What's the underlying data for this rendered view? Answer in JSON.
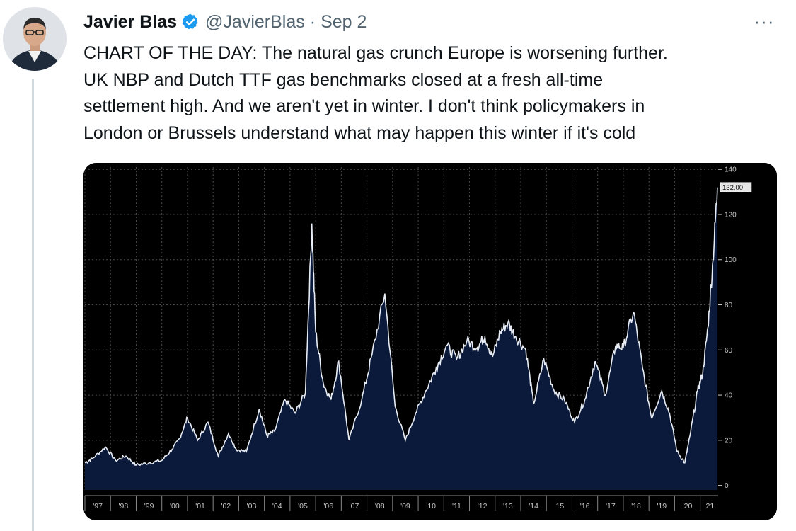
{
  "author": {
    "name": "Javier Blas",
    "handle": "@JavierBlas",
    "date": "Sep 2",
    "separator": "·"
  },
  "more_label": "···",
  "tweet_lines": [
    "CHART OF THE DAY: The natural gas crunch Europe is worsening further.",
    "UK NBP and Dutch TTF gas benchmarks closed at a fresh all-time",
    "settlement high. And we aren't yet in winter. I don't think policymakers in",
    "London or Brussels understand what may happen this winter if it's cold"
  ],
  "colors": {
    "verified_badge": "#1d9bf0",
    "chart_background": "#000000",
    "chart_fill": "#0b1a3a",
    "chart_line": "#e8edf5",
    "grid": "#4a4a4a",
    "axis_text": "#c8c8c8"
  },
  "chart_data": {
    "type": "area",
    "last_value_label": "132.00",
    "y_ticks": [
      0,
      20,
      40,
      60,
      80,
      100,
      120,
      140
    ],
    "ylim": [
      -2,
      141
    ],
    "xlim": [
      1997,
      2021.7
    ],
    "x_tick_labels": [
      "'97",
      "'98",
      "'99",
      "'00",
      "'01",
      "'02",
      "'03",
      "'04",
      "'05",
      "'06",
      "'07",
      "'08",
      "'09",
      "'10",
      "'11",
      "'12",
      "'13",
      "'14",
      "'15",
      "'16",
      "'17",
      "'18",
      "'19",
      "'20",
      "'21"
    ],
    "x_tick_years": [
      1997,
      1998,
      1999,
      2000,
      2001,
      2002,
      2003,
      2004,
      2005,
      2006,
      2007,
      2008,
      2009,
      2010,
      2011,
      2012,
      2013,
      2014,
      2015,
      2016,
      2017,
      2018,
      2019,
      2020,
      2021
    ],
    "series": [
      {
        "x": [
          1997.0,
          1997.3,
          1997.8,
          1998.2,
          1998.6,
          1999.0,
          1999.5,
          2000.0,
          2000.4,
          2000.7,
          2001.0,
          2001.4,
          2001.8,
          2002.2,
          2002.6,
          2002.9,
          2003.3,
          2003.8,
          2004.1,
          2004.4,
          2004.8,
          2005.2,
          2005.6,
          2005.85,
          2006.0,
          2006.3,
          2006.6,
          2006.9,
          2007.3,
          2007.8,
          2008.2,
          2008.7,
          2009.1,
          2009.5,
          2009.9,
          2010.3,
          2010.7,
          2011.1,
          2011.5,
          2011.9,
          2012.3,
          2012.6,
          2012.9,
          2013.2,
          2013.5,
          2013.8,
          2014.2,
          2014.5,
          2014.9,
          2015.3,
          2015.7,
          2016.1,
          2016.5,
          2016.9,
          2017.3,
          2017.7,
          2018.0,
          2018.4,
          2018.75,
          2019.1,
          2019.5,
          2019.8,
          2020.1,
          2020.4,
          2020.6,
          2020.9,
          2021.1,
          2021.3,
          2021.5,
          2021.67
        ],
        "y": [
          10,
          12,
          17,
          11,
          13,
          9,
          10,
          11,
          16,
          21,
          30,
          20,
          28,
          13,
          23,
          16,
          15,
          34,
          22,
          24,
          38,
          32,
          41,
          116,
          68,
          45,
          38,
          55,
          20,
          38,
          58,
          85,
          35,
          20,
          32,
          42,
          52,
          62,
          56,
          64,
          61,
          66,
          57,
          68,
          72,
          66,
          60,
          36,
          56,
          42,
          38,
          28,
          38,
          55,
          40,
          62,
          61,
          77,
          52,
          30,
          42,
          32,
          15,
          10,
          22,
          42,
          50,
          70,
          100,
          132
        ]
      }
    ]
  }
}
